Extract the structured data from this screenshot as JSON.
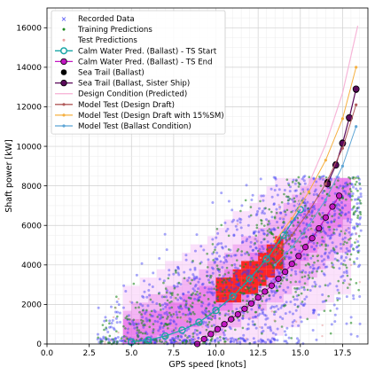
{
  "chart_data": {
    "type": "scatter",
    "xlabel": "GPS speed [knots]",
    "ylabel": "Shaft power [kW]",
    "xlim": [
      0,
      19
    ],
    "ylim": [
      0,
      17000
    ],
    "xticks": [
      0.0,
      2.5,
      5.0,
      7.5,
      10.0,
      12.5,
      15.0,
      17.5
    ],
    "xtick_labels": [
      "0.0",
      "2.5",
      "5.0",
      "7.5",
      "10.0",
      "12.5",
      "15.0",
      "17.5"
    ],
    "yticks": [
      0,
      2000,
      4000,
      6000,
      8000,
      10000,
      12000,
      14000,
      16000
    ],
    "ytick_labels": [
      "0",
      "2000",
      "4000",
      "6000",
      "8000",
      "10000",
      "12000",
      "14000",
      "16000"
    ],
    "grid": true,
    "legend_position": "upper-left",
    "colors": {
      "recorded": "#3b3bf5",
      "training": "#1f8a1f",
      "test": "#e8a0a0",
      "calm_start": "#1aa6a6",
      "calm_end": "#c218c2",
      "sea_trail": "#000000",
      "sea_trail_sister": "#5a0a5a",
      "design_condition": "#f7b6d8",
      "model_design": "#b05a5a",
      "model_sm": "#f5b041",
      "model_ballast": "#5da5d5",
      "heat_low": "#f8c8f8",
      "heat_mid": "#e65ce6",
      "heat_high": "#ff0000"
    },
    "series": [
      {
        "name": "Recorded Data",
        "kind": "scatter",
        "marker": "x"
      },
      {
        "name": "Training Predictions",
        "kind": "scatter",
        "marker": "dot"
      },
      {
        "name": "Test Predictions",
        "kind": "scatter",
        "marker": "dot"
      },
      {
        "name": "Calm Water Pred. (Ballast) - TS Start",
        "kind": "line-marker",
        "x": [
          5.0,
          6.0,
          7.0,
          8.0,
          9.0,
          10.0,
          11.0,
          12.0,
          13.0,
          14.0,
          15.0
        ],
        "y": [
          100,
          200,
          400,
          700,
          1100,
          1700,
          2400,
          3300,
          4300,
          5500,
          6800
        ]
      },
      {
        "name": "Calm Water Pred. (Ballast) - TS End",
        "kind": "line-marker",
        "x": [
          8.9,
          9.3,
          9.7,
          10.1,
          10.5,
          10.9,
          11.3,
          11.7,
          12.1,
          12.5,
          12.9,
          13.3,
          13.7,
          14.1,
          14.5,
          14.9,
          15.3,
          15.7,
          16.1,
          16.5,
          16.9,
          17.3
        ],
        "y": [
          0,
          250,
          500,
          750,
          1000,
          1250,
          1500,
          1780,
          2050,
          2350,
          2650,
          2950,
          3300,
          3650,
          4050,
          4450,
          4900,
          5350,
          5850,
          6400,
          6950,
          7500
        ]
      },
      {
        "name": "Sea Trail (Ballast)",
        "kind": "marker",
        "x": [
          16.6,
          17.1,
          17.5,
          17.9,
          18.3
        ],
        "y": [
          8200,
          9100,
          10200,
          11400,
          12850
        ]
      },
      {
        "name": "Sea Trail (Ballast, Sister Ship)",
        "kind": "line-marker",
        "x": [
          16.6,
          17.1,
          17.5,
          17.9,
          18.3
        ],
        "y": [
          8100,
          9050,
          10150,
          11450,
          12900
        ]
      },
      {
        "name": "Design Condition (Predicted)",
        "kind": "line",
        "x": [
          13.5,
          14.5,
          15.5,
          16.5,
          17.5,
          18.4
        ],
        "y": [
          5200,
          6500,
          8100,
          10100,
          12700,
          16100
        ]
      },
      {
        "name": "Model Test (Design Draft)",
        "kind": "line-marker",
        "x": [
          13.5,
          14.5,
          15.5,
          16.5,
          17.5,
          18.3
        ],
        "y": [
          4500,
          5500,
          6700,
          8100,
          9900,
          12100
        ]
      },
      {
        "name": "Model Test (Design Draft with 15%SM)",
        "kind": "line-marker",
        "x": [
          13.5,
          14.5,
          15.5,
          16.5,
          17.5,
          18.3
        ],
        "y": [
          5200,
          6350,
          7700,
          9300,
          11400,
          14000
        ]
      },
      {
        "name": "Model Test (Ballast Condition)",
        "kind": "line-marker",
        "x": [
          13.5,
          14.5,
          15.5,
          16.5,
          17.5,
          18.3
        ],
        "y": [
          4000,
          4900,
          6000,
          7300,
          9000,
          11000
        ]
      }
    ]
  }
}
